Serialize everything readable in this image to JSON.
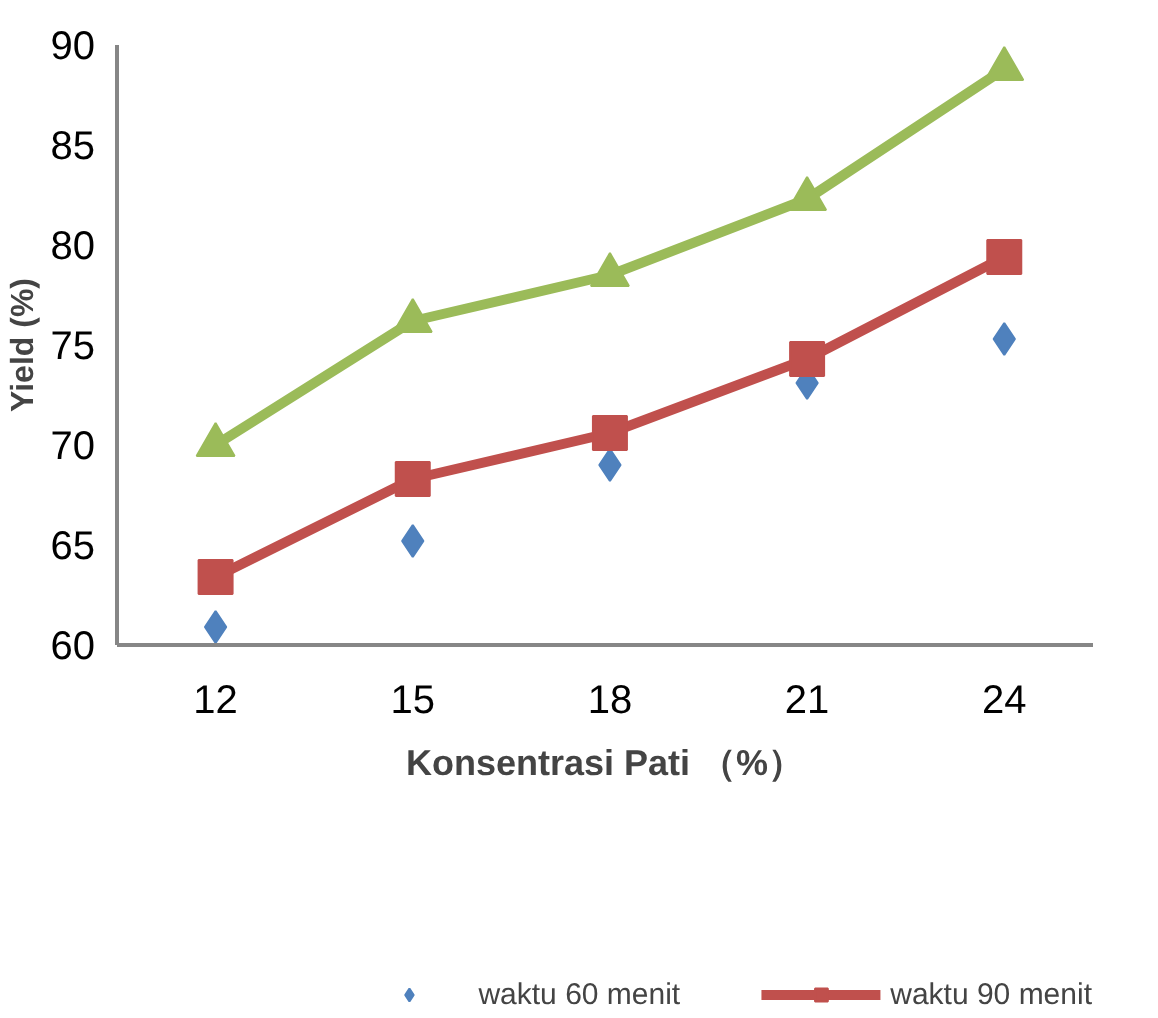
{
  "chart_data": {
    "type": "line",
    "xlabel": "Konsentrasi Pati （%）",
    "ylabel": "Yield (%)",
    "categories": [
      "12",
      "15",
      "18",
      "21",
      "24"
    ],
    "series": [
      {
        "name": "waktu 60 menit",
        "type": "scatter",
        "marker": "diamond",
        "color": "#4f81bd",
        "values": [
          60.9,
          65.2,
          69.0,
          73.1,
          75.3
        ]
      },
      {
        "name": "waktu 90 menit",
        "marker": "square",
        "color": "#c0504d",
        "values": [
          63.4,
          68.3,
          70.6,
          74.3,
          79.4
        ]
      },
      {
        "marker": "triangle",
        "color": "#9bbb59",
        "values": [
          70.0,
          76.2,
          78.5,
          82.3,
          88.8
        ]
      }
    ],
    "ylim": [
      60,
      90
    ],
    "yticks": [
      60,
      65,
      70,
      75,
      80,
      85,
      90
    ],
    "grid": false,
    "legend": "bottom"
  }
}
